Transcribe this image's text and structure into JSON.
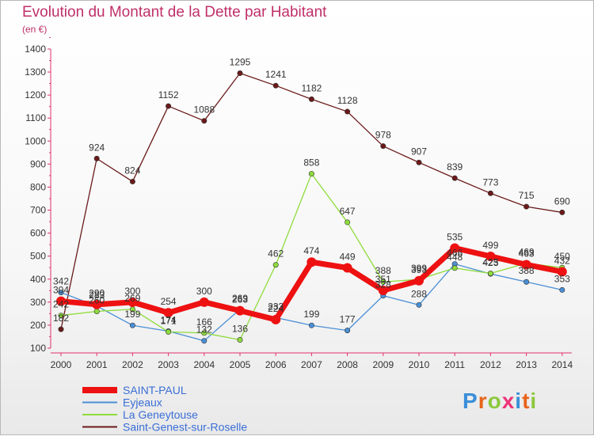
{
  "chart_data": {
    "type": "line",
    "title": "Evolution du Montant de la Dette par Habitant",
    "subtitle": "(en €)",
    "x": [
      "2000",
      "2001",
      "2002",
      "2003",
      "2004",
      "2005",
      "2006",
      "2007",
      "2008",
      "2009",
      "2010",
      "2011",
      "2012",
      "2013",
      "2014"
    ],
    "ylim": [
      100,
      1400
    ],
    "yticks": [
      100,
      200,
      300,
      400,
      500,
      600,
      700,
      800,
      900,
      1000,
      1100,
      1200,
      1300,
      1400
    ],
    "grid": false,
    "legend_position": "bottom-left",
    "series": [
      {
        "name": "SAINT-PAUL",
        "color": "#ee1111",
        "values": [
          304,
          290,
          300,
          254,
          300,
          263,
          224,
          474,
          449,
          351,
          393,
          535,
          499,
          463,
          432
        ]
      },
      {
        "name": "Eyjeaux",
        "color": "#4b8fd6",
        "values": [
          342,
          283,
          199,
          174,
          132,
          269,
          233,
          199,
          177,
          328,
          288,
          466,
          423,
          388,
          353
        ]
      },
      {
        "name": "La Geneytouse",
        "color": "#8fdc3c",
        "values": [
          242,
          260,
          269,
          171,
          166,
          136,
          462,
          858,
          647,
          388,
          399,
          448,
          425,
          469,
          450
        ]
      },
      {
        "name": "Saint-Genest-sur-Roselle",
        "color": "#6b1a1a",
        "values": [
          182,
          924,
          824,
          1152,
          1088,
          1295,
          1241,
          1182,
          1128,
          978,
          907,
          839,
          773,
          715,
          690
        ]
      }
    ]
  },
  "logo": {
    "text": "Proxiti",
    "letter_colors": [
      "#3a8fd8",
      "#e8641a",
      "#8cc83c",
      "#ee3377",
      "#3a8fd8",
      "#e8641a",
      "#8cc83c"
    ]
  }
}
